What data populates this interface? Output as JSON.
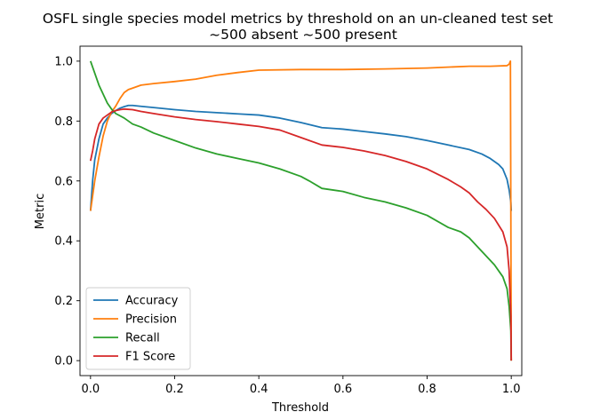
{
  "chart_data": {
    "type": "line",
    "title": "OSFL single species model metrics by threshold on an un-cleaned test set",
    "subtitle": "~500 absent ~500 present",
    "xlabel": "Threshold",
    "ylabel": "Metric",
    "xlim": [
      -0.025,
      1.025
    ],
    "ylim": [
      -0.05,
      1.05
    ],
    "xticks": [
      0.0,
      0.2,
      0.4,
      0.6,
      0.8,
      1.0
    ],
    "xtick_labels": [
      "0.0",
      "0.2",
      "0.4",
      "0.6",
      "0.8",
      "1.0"
    ],
    "yticks": [
      0.0,
      0.2,
      0.4,
      0.6,
      0.8,
      1.0
    ],
    "ytick_labels": [
      "0.0",
      "0.2",
      "0.4",
      "0.6",
      "0.8",
      "1.0"
    ],
    "grid": false,
    "legend_position": "lower-left",
    "series": [
      {
        "name": "Accuracy",
        "color": "#1f77b4",
        "points": [
          [
            0.0,
            0.5
          ],
          [
            0.005,
            0.6
          ],
          [
            0.01,
            0.67
          ],
          [
            0.02,
            0.74
          ],
          [
            0.03,
            0.79
          ],
          [
            0.04,
            0.81
          ],
          [
            0.05,
            0.825
          ],
          [
            0.06,
            0.835
          ],
          [
            0.07,
            0.843
          ],
          [
            0.08,
            0.848
          ],
          [
            0.09,
            0.852
          ],
          [
            0.1,
            0.852
          ],
          [
            0.12,
            0.849
          ],
          [
            0.15,
            0.845
          ],
          [
            0.2,
            0.838
          ],
          [
            0.25,
            0.832
          ],
          [
            0.3,
            0.828
          ],
          [
            0.35,
            0.824
          ],
          [
            0.4,
            0.82
          ],
          [
            0.45,
            0.81
          ],
          [
            0.5,
            0.795
          ],
          [
            0.55,
            0.778
          ],
          [
            0.6,
            0.773
          ],
          [
            0.65,
            0.765
          ],
          [
            0.7,
            0.757
          ],
          [
            0.75,
            0.748
          ],
          [
            0.8,
            0.735
          ],
          [
            0.85,
            0.72
          ],
          [
            0.9,
            0.705
          ],
          [
            0.93,
            0.69
          ],
          [
            0.95,
            0.675
          ],
          [
            0.97,
            0.655
          ],
          [
            0.98,
            0.64
          ],
          [
            0.99,
            0.605
          ],
          [
            0.995,
            0.57
          ],
          [
            0.999,
            0.53
          ],
          [
            1.0,
            0.5
          ]
        ]
      },
      {
        "name": "Precision",
        "color": "#ff7f0e",
        "points": [
          [
            0.0,
            0.5
          ],
          [
            0.005,
            0.55
          ],
          [
            0.01,
            0.6
          ],
          [
            0.02,
            0.68
          ],
          [
            0.03,
            0.75
          ],
          [
            0.04,
            0.8
          ],
          [
            0.05,
            0.83
          ],
          [
            0.06,
            0.85
          ],
          [
            0.07,
            0.875
          ],
          [
            0.08,
            0.895
          ],
          [
            0.09,
            0.905
          ],
          [
            0.1,
            0.91
          ],
          [
            0.12,
            0.92
          ],
          [
            0.15,
            0.925
          ],
          [
            0.2,
            0.932
          ],
          [
            0.25,
            0.94
          ],
          [
            0.3,
            0.953
          ],
          [
            0.35,
            0.962
          ],
          [
            0.4,
            0.97
          ],
          [
            0.5,
            0.972
          ],
          [
            0.6,
            0.972
          ],
          [
            0.7,
            0.974
          ],
          [
            0.8,
            0.977
          ],
          [
            0.9,
            0.983
          ],
          [
            0.95,
            0.983
          ],
          [
            0.99,
            0.985
          ],
          [
            0.995,
            0.99
          ],
          [
            0.998,
            1.0
          ],
          [
            1.0,
            0.0
          ]
        ]
      },
      {
        "name": "Recall",
        "color": "#2ca02c",
        "points": [
          [
            0.0,
            1.0
          ],
          [
            0.01,
            0.96
          ],
          [
            0.02,
            0.92
          ],
          [
            0.03,
            0.89
          ],
          [
            0.04,
            0.86
          ],
          [
            0.05,
            0.84
          ],
          [
            0.06,
            0.825
          ],
          [
            0.08,
            0.81
          ],
          [
            0.1,
            0.79
          ],
          [
            0.12,
            0.78
          ],
          [
            0.15,
            0.76
          ],
          [
            0.2,
            0.735
          ],
          [
            0.25,
            0.71
          ],
          [
            0.3,
            0.69
          ],
          [
            0.35,
            0.675
          ],
          [
            0.4,
            0.66
          ],
          [
            0.45,
            0.64
          ],
          [
            0.5,
            0.615
          ],
          [
            0.52,
            0.6
          ],
          [
            0.55,
            0.575
          ],
          [
            0.6,
            0.565
          ],
          [
            0.65,
            0.545
          ],
          [
            0.7,
            0.53
          ],
          [
            0.75,
            0.51
          ],
          [
            0.8,
            0.485
          ],
          [
            0.85,
            0.445
          ],
          [
            0.88,
            0.43
          ],
          [
            0.9,
            0.41
          ],
          [
            0.92,
            0.38
          ],
          [
            0.94,
            0.35
          ],
          [
            0.96,
            0.32
          ],
          [
            0.98,
            0.28
          ],
          [
            0.99,
            0.24
          ],
          [
            0.995,
            0.18
          ],
          [
            0.999,
            0.1
          ],
          [
            1.0,
            0.0
          ]
        ]
      },
      {
        "name": "F1 Score",
        "color": "#d62728",
        "points": [
          [
            0.0,
            0.667
          ],
          [
            0.005,
            0.7
          ],
          [
            0.01,
            0.74
          ],
          [
            0.02,
            0.79
          ],
          [
            0.03,
            0.81
          ],
          [
            0.04,
            0.82
          ],
          [
            0.05,
            0.83
          ],
          [
            0.06,
            0.835
          ],
          [
            0.07,
            0.838
          ],
          [
            0.08,
            0.84
          ],
          [
            0.1,
            0.838
          ],
          [
            0.12,
            0.832
          ],
          [
            0.15,
            0.825
          ],
          [
            0.2,
            0.814
          ],
          [
            0.25,
            0.805
          ],
          [
            0.3,
            0.798
          ],
          [
            0.35,
            0.79
          ],
          [
            0.4,
            0.782
          ],
          [
            0.45,
            0.77
          ],
          [
            0.5,
            0.745
          ],
          [
            0.55,
            0.72
          ],
          [
            0.6,
            0.712
          ],
          [
            0.65,
            0.7
          ],
          [
            0.7,
            0.685
          ],
          [
            0.75,
            0.665
          ],
          [
            0.8,
            0.64
          ],
          [
            0.85,
            0.605
          ],
          [
            0.88,
            0.58
          ],
          [
            0.9,
            0.56
          ],
          [
            0.92,
            0.53
          ],
          [
            0.94,
            0.505
          ],
          [
            0.96,
            0.475
          ],
          [
            0.98,
            0.43
          ],
          [
            0.99,
            0.38
          ],
          [
            0.995,
            0.3
          ],
          [
            0.999,
            0.15
          ],
          [
            1.0,
            0.0
          ]
        ]
      }
    ]
  }
}
